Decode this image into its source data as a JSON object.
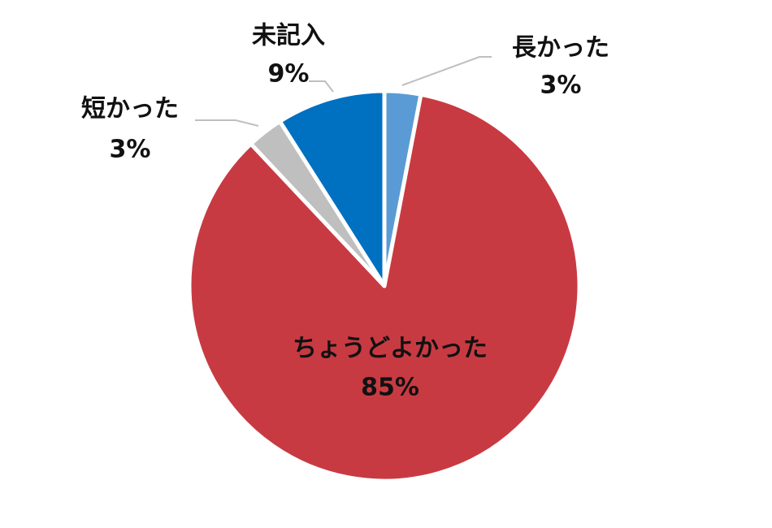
{
  "chart_data": {
    "type": "pie",
    "categories": [
      "長かった",
      "ちょうどよかった",
      "短かった",
      "未記入"
    ],
    "values": [
      3,
      85,
      3,
      9
    ],
    "value_labels": [
      "3%",
      "85%",
      "3%",
      "9%"
    ],
    "colors": [
      "#5b9bd5",
      "#c83a42",
      "#bfbfbf",
      "#0070c0"
    ]
  }
}
